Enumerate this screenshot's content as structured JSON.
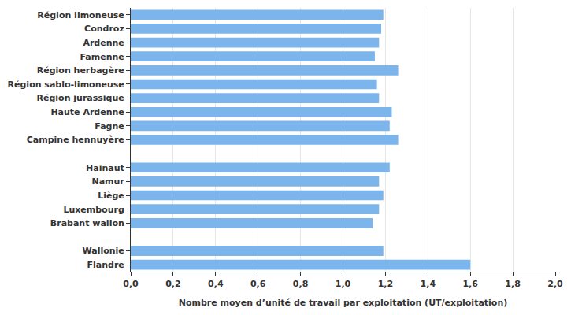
{
  "chart_data": {
    "type": "bar",
    "orientation": "horizontal",
    "categories": [
      "Région limoneuse",
      "Condroz",
      "Ardenne",
      "Famenne",
      "Région herbagère",
      "Région sablo-limoneuse",
      "Région jurassique",
      "Haute Ardenne",
      "Fagne",
      "Campine hennuyère",
      null,
      "Hainaut",
      "Namur",
      "Liège",
      "Luxembourg",
      "Brabant wallon",
      null,
      "Wallonie",
      "Flandre"
    ],
    "values": [
      1.19,
      1.18,
      1.17,
      1.15,
      1.26,
      1.16,
      1.17,
      1.23,
      1.22,
      1.26,
      null,
      1.22,
      1.17,
      1.19,
      1.17,
      1.14,
      null,
      1.19,
      1.6
    ],
    "color": "#7cb5ec",
    "xlabel": "Nombre moyen d’unité de travail par exploitation (UT/exploitation)",
    "xlim": [
      0,
      2
    ],
    "xticks": [
      {
        "value": 0,
        "label": "0,0"
      },
      {
        "value": 0.2,
        "label": "0,2"
      },
      {
        "value": 0.4,
        "label": "0,4"
      },
      {
        "value": 0.6,
        "label": "0,6"
      },
      {
        "value": 0.8,
        "label": "0,8"
      },
      {
        "value": 1,
        "label": "1,0"
      },
      {
        "value": 1.2,
        "label": "1,2"
      },
      {
        "value": 1.4,
        "label": "1,4"
      },
      {
        "value": 1.6,
        "label": "1,6"
      },
      {
        "value": 1.8,
        "label": "1,8"
      },
      {
        "value": 2,
        "label": "2,0"
      }
    ],
    "grid": true
  }
}
